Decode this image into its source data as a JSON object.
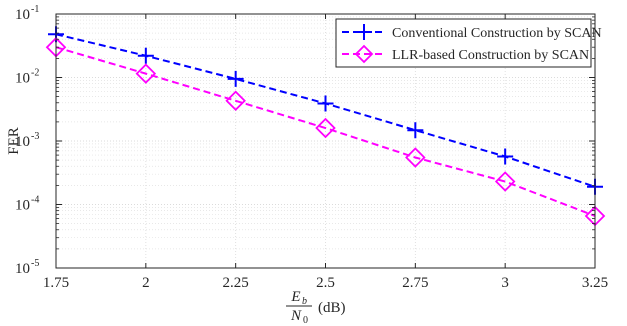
{
  "chart_data": {
    "type": "line",
    "xlabel": {
      "num": "E",
      "num_sub": "b",
      "den": "N",
      "den_sub": "0",
      "unit": "(dB)"
    },
    "ylabel": "FER",
    "y_scale": "log",
    "xlim": [
      1.75,
      3.25
    ],
    "ylim": [
      1e-05,
      0.1
    ],
    "x_ticks": [
      1.75,
      2,
      2.25,
      2.5,
      2.75,
      3,
      3.25
    ],
    "x_tick_labels": [
      "1.75",
      "2",
      "2.25",
      "2.5",
      "2.75",
      "3",
      "3.25"
    ],
    "y_ticks": [
      {
        "base": "10",
        "exp": "-5",
        "value": 1e-05
      },
      {
        "base": "10",
        "exp": "-4",
        "value": 0.0001
      },
      {
        "base": "10",
        "exp": "-3",
        "value": 0.001
      },
      {
        "base": "10",
        "exp": "-2",
        "value": 0.01
      },
      {
        "base": "10",
        "exp": "-1",
        "value": 0.1
      }
    ],
    "grid": true,
    "legend_position": "top-right",
    "x": [
      1.75,
      2,
      2.25,
      2.5,
      2.75,
      3,
      3.25
    ],
    "series": [
      {
        "name": "Conventional Construction by SCAN",
        "color": "#0000ff",
        "marker": "plus",
        "line": "dashed",
        "values": [
          0.048,
          0.022,
          0.0095,
          0.0039,
          0.00148,
          0.00057,
          0.00019
        ]
      },
      {
        "name": "LLR-based Construction by SCAN",
        "color": "#ff00ff",
        "marker": "diamond",
        "line": "dashed",
        "values": [
          0.03,
          0.0115,
          0.0043,
          0.0016,
          0.00055,
          0.00023,
          6.6e-05
        ]
      }
    ]
  }
}
